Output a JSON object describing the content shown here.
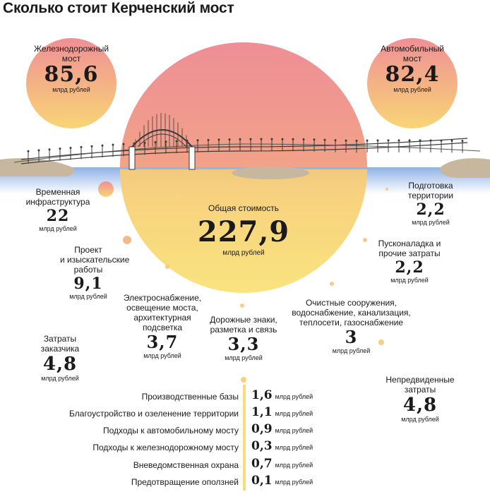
{
  "title": "Сколько стоит Керченский мост",
  "unit": "млрд рублей",
  "rail": {
    "label1": "Железнодорожный",
    "label2": "мост",
    "value": "85,6"
  },
  "road": {
    "label1": "Автомобильный",
    "label2": "мост",
    "value": "82,4"
  },
  "total": {
    "label": "Общая стоимость",
    "value": "227,9"
  },
  "items": {
    "temp": {
      "l1": "Временная",
      "l2": "инфраструктура",
      "value": "22"
    },
    "design": {
      "l1": "Проект",
      "l2": "и изыскательские",
      "l3": "работы",
      "value": "9,1"
    },
    "electric": {
      "l1": "Электроснабжение,",
      "l2": "освещение моста,",
      "l3": "архитектурная",
      "l4": "подсветка",
      "value": "3,7"
    },
    "signs": {
      "l1": "Дорожные знаки,",
      "l2": "разметка и связь",
      "value": "3,3"
    },
    "water": {
      "l1": "Очистные сооружения,",
      "l2": "водоснабжение, канализация,",
      "l3": "теплосети, газоснабжение",
      "value": "3"
    },
    "prep": {
      "l1": "Подготовка",
      "l2": "территории",
      "value": "2,2"
    },
    "commission": {
      "l1": "Пусконаладка и",
      "l2": "прочие затраты",
      "value": "2,2"
    },
    "customer": {
      "l1": "Затраты",
      "l2": "заказчика",
      "value": "4,8"
    },
    "unforeseen": {
      "l1": "Непредвиденные",
      "l2": "затраты",
      "value": "4,8"
    }
  },
  "small_costs": [
    {
      "label": "Производственные базы",
      "value": "1,6"
    },
    {
      "label": "Благоустройство и озеленение территории",
      "value": "1,1"
    },
    {
      "label": "Подходы к автомобильному мосту",
      "value": "0,9"
    },
    {
      "label": "Подходы к железнодорожному мосту",
      "value": "0,3"
    },
    {
      "label": "Вневедомственная охрана",
      "value": "0,7"
    },
    {
      "label": "Предотвращение оползней",
      "value": "0,1"
    }
  ],
  "colors": {
    "sun_top": "#ef8f96",
    "sun_bottom": "#f8dd72",
    "water": "#8fb3e6",
    "shore": "#c8b79f"
  }
}
